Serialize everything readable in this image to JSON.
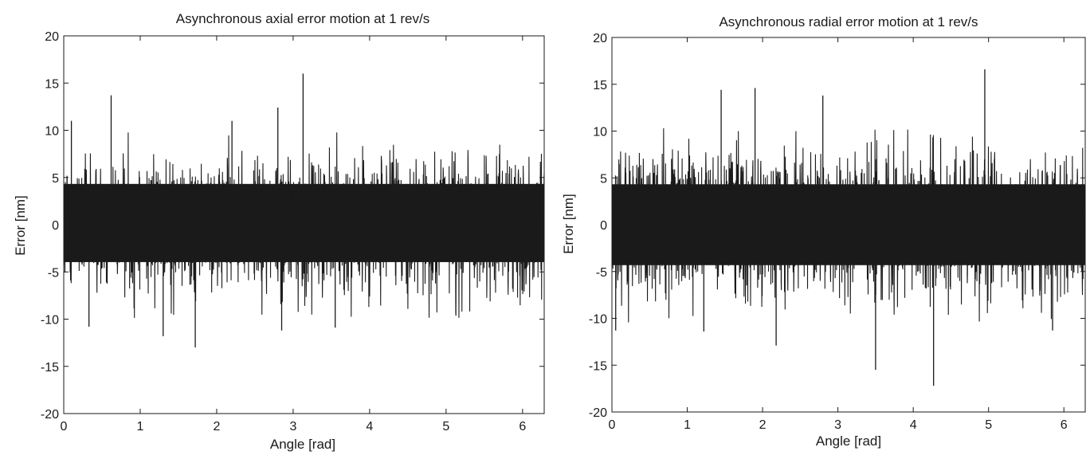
{
  "chart_data": [
    {
      "type": "line",
      "title": "Asynchronous axial error motion at 1 rev/s",
      "xlabel": "Angle [rad]",
      "ylabel": "Error [nm]",
      "xlim": [
        0,
        6.2832
      ],
      "ylim": [
        -20,
        20
      ],
      "xticks": [
        "0",
        "1",
        "2",
        "3",
        "4",
        "5",
        "6"
      ],
      "yticks": [
        "-20",
        "-15",
        "-10",
        "-5",
        "0",
        "5",
        "10",
        "15",
        "20"
      ],
      "grid": false,
      "line_color": "#1a1a1a",
      "noise": {
        "center": 0,
        "band": [
          -5.5,
          6.0
        ],
        "typical_abs": 4.5
      },
      "spikes": [
        {
          "x": 0.62,
          "y": 13.7
        },
        {
          "x": 3.13,
          "y": 16.0
        },
        {
          "x": 2.8,
          "y": 12.4
        },
        {
          "x": 2.2,
          "y": 11.0
        },
        {
          "x": 0.1,
          "y": 11.0
        },
        {
          "x": 1.72,
          "y": -13.0
        },
        {
          "x": 1.3,
          "y": -11.8
        },
        {
          "x": 2.85,
          "y": -11.2
        },
        {
          "x": 0.33,
          "y": -10.8
        },
        {
          "x": 3.55,
          "y": -10.9
        }
      ]
    },
    {
      "type": "line",
      "title": "Asynchronous radial error motion  at 1 rev/s",
      "xlabel": "Angle [rad]",
      "ylabel": "Error [nm]",
      "xlim": [
        0,
        6.2832
      ],
      "ylim": [
        -20,
        20
      ],
      "xticks": [
        "0",
        "1",
        "2",
        "3",
        "4",
        "5",
        "6"
      ],
      "yticks": [
        "-20",
        "-15",
        "-10",
        "-5",
        "0",
        "5",
        "10",
        "15",
        "20"
      ],
      "grid": false,
      "line_color": "#1a1a1a",
      "noise": {
        "center": 0,
        "band": [
          -6.0,
          6.0
        ],
        "typical_abs": 4.8
      },
      "spikes": [
        {
          "x": 4.95,
          "y": 16.6
        },
        {
          "x": 1.9,
          "y": 14.6
        },
        {
          "x": 1.45,
          "y": 14.4
        },
        {
          "x": 2.8,
          "y": 13.8
        },
        {
          "x": 4.27,
          "y": -17.2
        },
        {
          "x": 3.5,
          "y": -15.5
        },
        {
          "x": 2.18,
          "y": -12.9
        },
        {
          "x": 1.22,
          "y": -11.4
        },
        {
          "x": 0.05,
          "y": -11.3
        },
        {
          "x": 5.85,
          "y": -11.3
        }
      ]
    }
  ]
}
